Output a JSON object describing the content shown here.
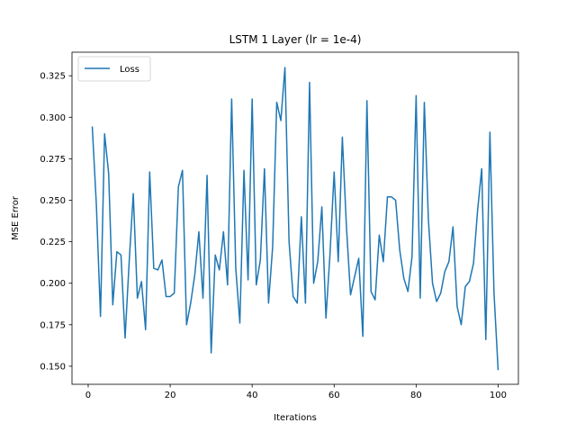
{
  "chart_data": {
    "type": "line",
    "title": "LSTM 1 Layer (lr = 1e-4)",
    "xlabel": "Iterations",
    "ylabel": "MSE Error",
    "xlim": [
      -3.95,
      104.95
    ],
    "ylim": [
      0.1391,
      0.3392
    ],
    "xticks": [
      0,
      20,
      40,
      60,
      80,
      100
    ],
    "yticks": [
      0.15,
      0.175,
      0.2,
      0.225,
      0.25,
      0.275,
      0.3,
      0.325
    ],
    "ytick_labels": [
      "0.150",
      "0.175",
      "0.200",
      "0.225",
      "0.250",
      "0.275",
      "0.300",
      "0.325"
    ],
    "grid": false,
    "legend": {
      "placement": "upper-left",
      "entries": [
        "Loss"
      ]
    },
    "series": [
      {
        "name": "Loss",
        "color": "#1f77b4",
        "x": [
          1,
          2,
          3,
          4,
          5,
          6,
          7,
          8,
          9,
          10,
          11,
          12,
          13,
          14,
          15,
          16,
          17,
          18,
          19,
          20,
          21,
          22,
          23,
          24,
          25,
          26,
          27,
          28,
          29,
          30,
          31,
          32,
          33,
          34,
          35,
          36,
          37,
          38,
          39,
          40,
          41,
          42,
          43,
          44,
          45,
          46,
          47,
          48,
          49,
          50,
          51,
          52,
          53,
          54,
          55,
          56,
          57,
          58,
          59,
          60,
          61,
          62,
          63,
          64,
          65,
          66,
          67,
          68,
          69,
          70,
          71,
          72,
          73,
          74,
          75,
          76,
          77,
          78,
          79,
          80,
          81,
          82,
          83,
          84,
          85,
          86,
          87,
          88,
          89,
          90,
          91,
          92,
          93,
          94,
          95,
          96,
          97,
          98,
          99,
          100
        ],
        "y": [
          0.294,
          0.247,
          0.18,
          0.29,
          0.266,
          0.187,
          0.219,
          0.217,
          0.167,
          0.213,
          0.254,
          0.191,
          0.201,
          0.172,
          0.267,
          0.209,
          0.208,
          0.214,
          0.192,
          0.192,
          0.194,
          0.258,
          0.268,
          0.175,
          0.188,
          0.205,
          0.231,
          0.191,
          0.265,
          0.158,
          0.217,
          0.208,
          0.231,
          0.199,
          0.311,
          0.209,
          0.176,
          0.268,
          0.202,
          0.311,
          0.199,
          0.214,
          0.269,
          0.188,
          0.222,
          0.309,
          0.298,
          0.33,
          0.225,
          0.192,
          0.188,
          0.24,
          0.188,
          0.321,
          0.2,
          0.213,
          0.246,
          0.179,
          0.218,
          0.267,
          0.213,
          0.288,
          0.234,
          0.193,
          0.204,
          0.215,
          0.168,
          0.31,
          0.195,
          0.19,
          0.229,
          0.213,
          0.252,
          0.252,
          0.25,
          0.22,
          0.203,
          0.195,
          0.216,
          0.313,
          0.191,
          0.309,
          0.238,
          0.2,
          0.189,
          0.194,
          0.207,
          0.213,
          0.234,
          0.186,
          0.175,
          0.198,
          0.201,
          0.212,
          0.244,
          0.269,
          0.166,
          0.291,
          0.194,
          0.148
        ]
      }
    ]
  }
}
